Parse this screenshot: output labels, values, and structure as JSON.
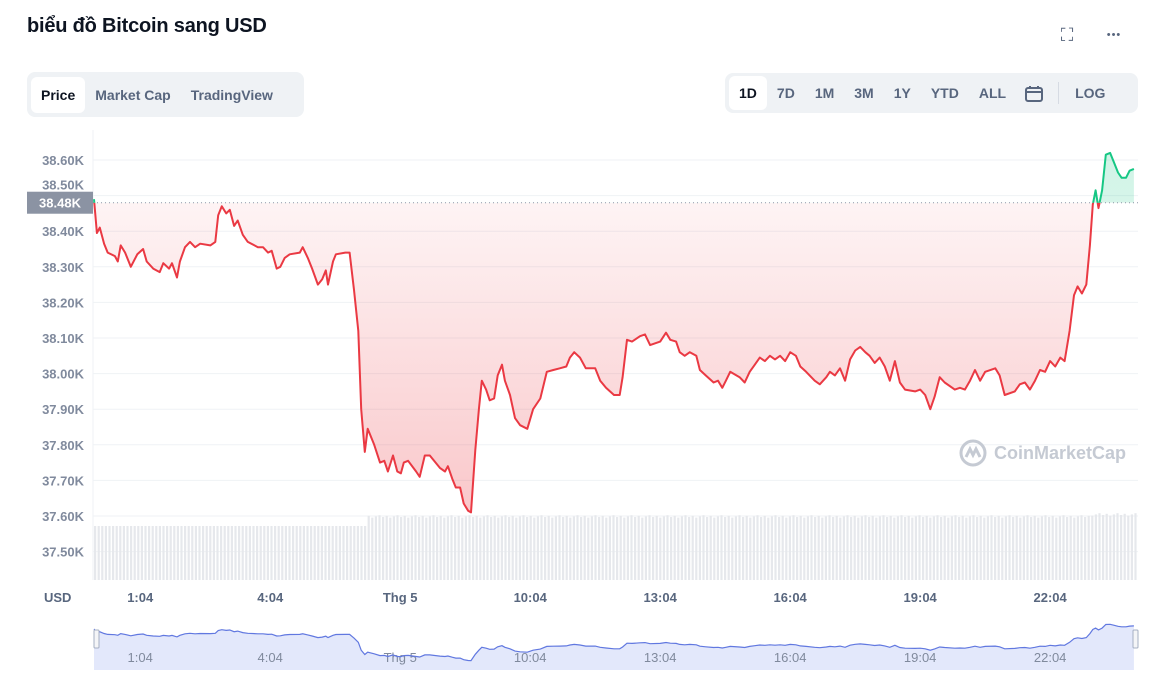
{
  "title": "biểu đồ Bitcoin sang USD",
  "header_icons": {
    "fullscreen": "fullscreen-icon",
    "more": "more-horizontal-icon",
    "fullscreen_glyph": "⛶",
    "more_glyph": "•••"
  },
  "tabs": [
    {
      "label": "Price",
      "active": true
    },
    {
      "label": "Market Cap",
      "active": false
    },
    {
      "label": "TradingView",
      "active": false
    }
  ],
  "ranges": [
    {
      "label": "1D",
      "active": true
    },
    {
      "label": "7D"
    },
    {
      "label": "1M"
    },
    {
      "label": "3M"
    },
    {
      "label": "1Y"
    },
    {
      "label": "YTD"
    },
    {
      "label": "ALL"
    }
  ],
  "calendar_icon": "calendar-icon",
  "log_label": "LOG",
  "watermark": "CoinMarketCap",
  "colors": {
    "down": "#ea3943",
    "up": "#16c784",
    "navigator_line": "#6178e0",
    "navigator_fill": "#e3e8fb"
  },
  "chart_data": {
    "type": "line",
    "currency_label": "USD",
    "current_price_label": "38.48K",
    "baseline": 38480,
    "ylim": [
      37440,
      38680
    ],
    "yticks": [
      37500,
      37600,
      37700,
      37800,
      37900,
      38000,
      38100,
      38200,
      38300,
      38400,
      38500,
      38600
    ],
    "ytick_labels": [
      "37.50K",
      "37.60K",
      "37.70K",
      "37.80K",
      "37.90K",
      "38.00K",
      "38.10K",
      "38.20K",
      "38.30K",
      "38.40K",
      "38.50K",
      "38.60K"
    ],
    "xtick_labels": [
      "1:04",
      "4:04",
      "Thg 5",
      "10:04",
      "13:04",
      "16:04",
      "19:04",
      "22:04"
    ],
    "xtick_times": [
      "01:04",
      "04:04",
      "07:04",
      "10:04",
      "13:04",
      "16:04",
      "19:04",
      "22:04"
    ],
    "grid": true,
    "series": [
      {
        "times": [
          "00:00",
          "00:04",
          "00:08",
          "00:14",
          "00:19",
          "00:29",
          "00:33",
          "00:37",
          "00:43",
          "00:51",
          "01:00",
          "01:08",
          "01:13",
          "01:22",
          "01:31",
          "01:36",
          "01:44",
          "01:48",
          "01:55",
          "01:59",
          "02:06",
          "02:13",
          "02:20",
          "02:27",
          "02:41",
          "02:48",
          "02:52",
          "02:57",
          "03:03",
          "03:08",
          "03:14",
          "03:19",
          "03:26",
          "03:33",
          "03:47",
          "03:54",
          "04:01",
          "04:06",
          "04:13",
          "04:18",
          "04:24",
          "04:31",
          "04:45",
          "04:49",
          "04:56",
          "05:02",
          "05:10",
          "05:16",
          "05:21",
          "05:24",
          "05:31",
          "05:35",
          "05:48",
          "05:54",
          "06:00",
          "06:06",
          "06:10",
          "06:15",
          "06:19",
          "06:28",
          "06:36",
          "06:42",
          "06:47",
          "06:54",
          "07:00",
          "07:05",
          "07:09",
          "07:15",
          "07:26",
          "07:31",
          "07:38",
          "07:45",
          "07:59",
          "08:06",
          "08:10",
          "08:16",
          "08:21",
          "08:27",
          "08:32",
          "08:38",
          "08:42",
          "08:48",
          "08:53",
          "08:57",
          "09:03",
          "09:08",
          "09:14",
          "09:19",
          "09:25",
          "09:29",
          "09:36",
          "09:43",
          "09:50",
          "10:00",
          "10:08",
          "10:18",
          "10:27",
          "10:36",
          "10:45",
          "10:54",
          "10:59",
          "11:05",
          "11:13",
          "11:21",
          "11:34",
          "11:41",
          "11:49",
          "12:00",
          "12:08",
          "12:12",
          "12:18",
          "12:25",
          "12:36",
          "12:43",
          "12:50",
          "13:04",
          "13:12",
          "13:18",
          "13:26",
          "13:31",
          "13:38",
          "13:45",
          "13:54",
          "13:59",
          "14:07",
          "14:18",
          "14:24",
          "14:30",
          "14:35",
          "14:41",
          "14:54",
          "15:01",
          "15:08",
          "15:15",
          "15:22",
          "15:29",
          "15:36",
          "15:43",
          "15:50",
          "15:57",
          "16:04",
          "16:12",
          "16:18",
          "16:26",
          "16:38",
          "16:45",
          "16:54",
          "16:59",
          "17:06",
          "17:13",
          "17:20",
          "17:27",
          "17:34",
          "17:41",
          "17:48",
          "17:54",
          "18:01",
          "18:08",
          "18:15",
          "18:22",
          "18:29",
          "18:36",
          "18:43",
          "18:57",
          "19:04",
          "19:11",
          "19:18",
          "19:24",
          "19:31",
          "19:38",
          "19:52",
          "19:59",
          "20:06",
          "20:13",
          "20:20",
          "20:27",
          "20:34",
          "20:48",
          "20:54",
          "21:01",
          "21:15",
          "21:22",
          "21:29",
          "21:36",
          "21:43",
          "21:50",
          "21:57",
          "22:04",
          "22:11",
          "22:18",
          "22:24",
          "22:31",
          "22:37",
          "22:42",
          "22:48",
          "22:54",
          "22:59",
          "23:03",
          "23:07",
          "23:11",
          "23:16",
          "23:21",
          "23:27",
          "23:32",
          "23:38",
          "23:43",
          "23:49",
          "23:54",
          "24:00"
        ],
        "values": [
          38490,
          38395,
          38410,
          38365,
          38340,
          38330,
          38315,
          38360,
          38340,
          38300,
          38335,
          38350,
          38315,
          38295,
          38285,
          38310,
          38295,
          38310,
          38270,
          38315,
          38355,
          38370,
          38355,
          38365,
          38360,
          38370,
          38445,
          38470,
          38450,
          38460,
          38415,
          38430,
          38390,
          38370,
          38355,
          38355,
          38340,
          38345,
          38295,
          38300,
          38325,
          38335,
          38340,
          38355,
          38325,
          38295,
          38250,
          38265,
          38290,
          38250,
          38315,
          38335,
          38340,
          38340,
          38235,
          38120,
          37900,
          37780,
          37845,
          37800,
          37750,
          37755,
          37725,
          37770,
          37725,
          37720,
          37750,
          37755,
          37725,
          37710,
          37770,
          37770,
          37735,
          37725,
          37740,
          37705,
          37680,
          37680,
          37635,
          37615,
          37610,
          37785,
          37900,
          37980,
          37955,
          37925,
          37930,
          37995,
          38025,
          37980,
          37940,
          37875,
          37855,
          37845,
          37900,
          37930,
          38005,
          38010,
          38015,
          38020,
          38045,
          38060,
          38045,
          38015,
          38015,
          37980,
          37960,
          37940,
          37940,
          37990,
          38095,
          38090,
          38105,
          38110,
          38080,
          38090,
          38115,
          38095,
          38090,
          38060,
          38050,
          38060,
          38050,
          38010,
          37995,
          37975,
          37980,
          37960,
          37980,
          38005,
          37990,
          37975,
          38005,
          38025,
          38045,
          38035,
          38050,
          38040,
          38050,
          38035,
          38060,
          38050,
          38020,
          38005,
          37980,
          37970,
          37990,
          38005,
          37995,
          38015,
          37980,
          38040,
          38065,
          38075,
          38060,
          38050,
          38030,
          38045,
          38020,
          37980,
          38035,
          37975,
          37955,
          37950,
          37955,
          37940,
          37900,
          37935,
          37990,
          37975,
          37955,
          37960,
          37955,
          37980,
          38010,
          37980,
          38005,
          38015,
          37995,
          37940,
          37950,
          37970,
          37975,
          37955,
          37980,
          38010,
          38005,
          38035,
          38020,
          38045,
          38035,
          38120,
          38220,
          38245,
          38225,
          38250,
          38360,
          38475,
          38515,
          38465,
          38515,
          38615,
          38620,
          38595,
          38565,
          38550,
          38550,
          38570,
          38575
        ]
      }
    ]
  }
}
